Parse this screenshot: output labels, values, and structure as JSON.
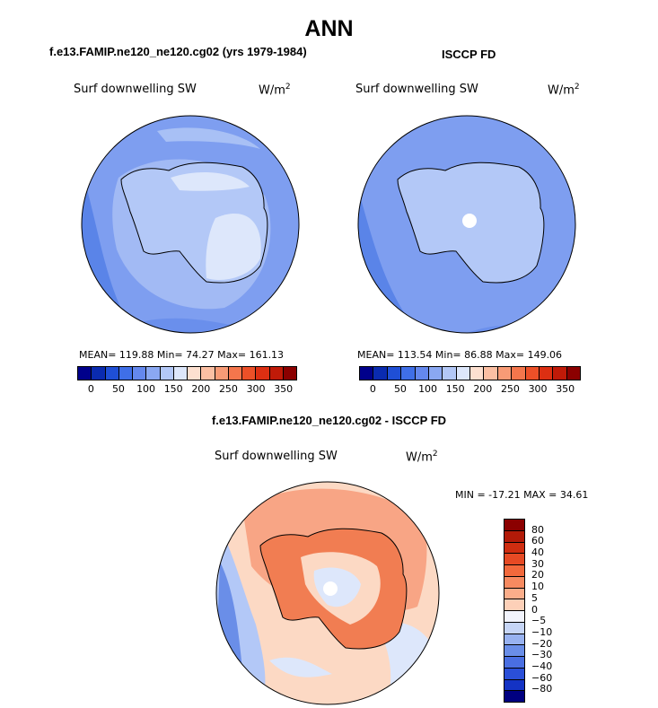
{
  "title": "ANN",
  "panels": [
    {
      "title": "f.e13.FAMIP.ne120_ne120.cg02 (yrs 1979-1984)",
      "variable": "Surf downwelling SW",
      "units_base": "W/m",
      "units_exp": "2",
      "stats": "MEAN= 119.88   Min=  74.27   Max= 161.13"
    },
    {
      "title": "ISCCP FD",
      "variable": "Surf downwelling SW",
      "units_base": "W/m",
      "units_exp": "2",
      "stats": "MEAN= 113.54   Min=  86.88   Max= 149.06"
    },
    {
      "title": "f.e13.FAMIP.ne120_ne120.cg02 - ISCCP FD",
      "variable": "Surf downwelling SW",
      "units_base": "W/m",
      "units_exp": "2",
      "stats": "MIN = -17.21 MAX =  34.61"
    }
  ],
  "colorbar_abs": {
    "ticks": [
      "0",
      "50",
      "100",
      "150",
      "200",
      "250",
      "300",
      "350"
    ],
    "colors": [
      "#00008b",
      "#0a2bb0",
      "#1f4fd6",
      "#3f6fe8",
      "#6488ee",
      "#8aa8f2",
      "#b3c8f7",
      "#dde7fb",
      "#fde0d0",
      "#fbbfa3",
      "#f89b76",
      "#f4764c",
      "#ec5028",
      "#dc2f12",
      "#c01a08",
      "#8b0000"
    ]
  },
  "colorbar_diff": {
    "ticks": [
      "80",
      "60",
      "40",
      "30",
      "20",
      "10",
      "5",
      "0",
      "−5",
      "−10",
      "−20",
      "−30",
      "−40",
      "−60",
      "−80"
    ],
    "colors": [
      "#8b0000",
      "#b21a08",
      "#cf2d10",
      "#e64a24",
      "#f2693c",
      "#f78a60",
      "#fbad8a",
      "#fdd0b8",
      "#f2f4fd",
      "#c6d5f6",
      "#98b2f0",
      "#6a8ee8",
      "#4a6fe2",
      "#2a4fd8",
      "#1433c4",
      "#000080"
    ]
  },
  "regions": {
    "ocean_abs": "#7e9ef0",
    "deep_blue": "#5a84e8",
    "pale": "#b3c8f7",
    "palest": "#dde7fb",
    "white_hole": "#ffffff",
    "diff_base": "#dde7fb",
    "diff_pos": "#f8a585",
    "diff_pos2": "#f17d52",
    "diff_neg": "#b3c8f7",
    "diff_light_pos": "#fcd9c4"
  }
}
